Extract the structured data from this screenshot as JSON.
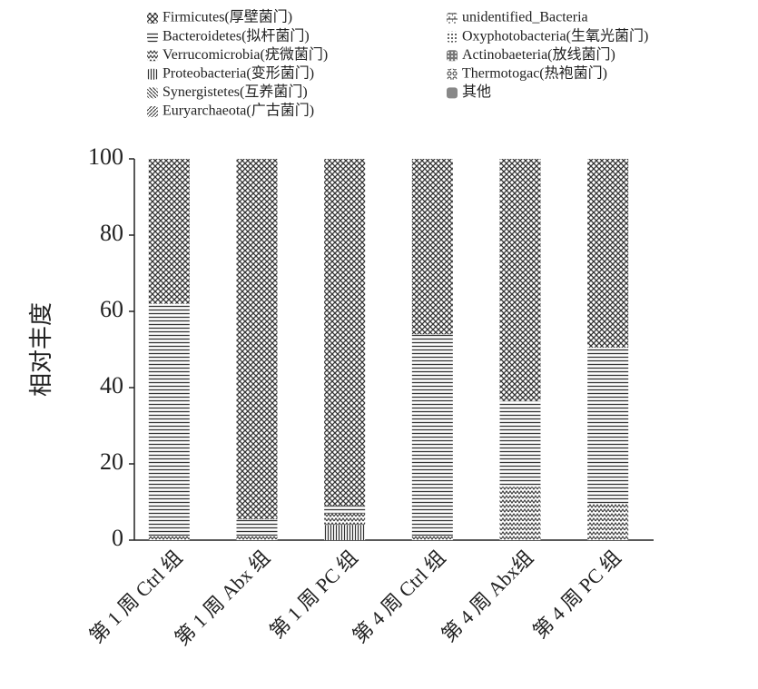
{
  "chart_data": {
    "type": "stacked_bar",
    "ylabel": "相对丰度",
    "categories": [
      "第 1 周 Ctrl 组",
      "第 1 周 Abx 组",
      "第 1 周 PC 组",
      "第 4 周 Ctrl 组",
      "第 4 周 Abx组",
      "第 4 周 PC 组"
    ],
    "ylim": [
      0,
      100
    ],
    "yticks": [
      0,
      20,
      40,
      60,
      80,
      100
    ],
    "series": [
      {
        "name": "Firmicutes(厚壁菌门)",
        "pattern": "cross",
        "values": [
          38,
          94.5,
          91,
          46,
          63.5,
          49.5
        ]
      },
      {
        "name": "Bacteroidetes(拟杆菌门)",
        "pattern": "hlines",
        "values": [
          61,
          4.5,
          2,
          53,
          22.5,
          41
        ]
      },
      {
        "name": "Verrucomicrobia(疣微菌门)",
        "pattern": "waves",
        "values": [
          1,
          1,
          3,
          1,
          14,
          9.5
        ]
      },
      {
        "name": "Proteobacteria(变形菌门)",
        "pattern": "vlines",
        "values": [
          0,
          0,
          4,
          0,
          0,
          0
        ]
      },
      {
        "name": "Synergistetes(互养菌门)",
        "pattern": "diag",
        "values": [
          0,
          0,
          0,
          0,
          0,
          0
        ]
      },
      {
        "name": "Euryarchaeota(广古菌门)",
        "pattern": "diag2",
        "values": [
          0,
          0,
          0,
          0,
          0,
          0
        ]
      },
      {
        "name": "unidentified_Bacteria",
        "pattern": "bricks",
        "values": [
          0,
          0,
          0,
          0,
          0,
          0
        ]
      },
      {
        "name": "Oxyphotobacteria(生氧光菌门)",
        "pattern": "dots",
        "values": [
          0,
          0,
          0,
          0,
          0,
          0
        ]
      },
      {
        "name": "Actinobaeteria(放线菌门)",
        "pattern": "grid",
        "values": [
          0,
          0,
          0,
          0,
          0,
          0
        ]
      },
      {
        "name": "Thermotogac(热袍菌门)",
        "pattern": "loops",
        "values": [
          0,
          0,
          0,
          0,
          0,
          0
        ]
      },
      {
        "name": "其他",
        "pattern": "solid",
        "values": [
          0,
          0,
          0,
          0,
          0,
          0
        ]
      }
    ]
  }
}
